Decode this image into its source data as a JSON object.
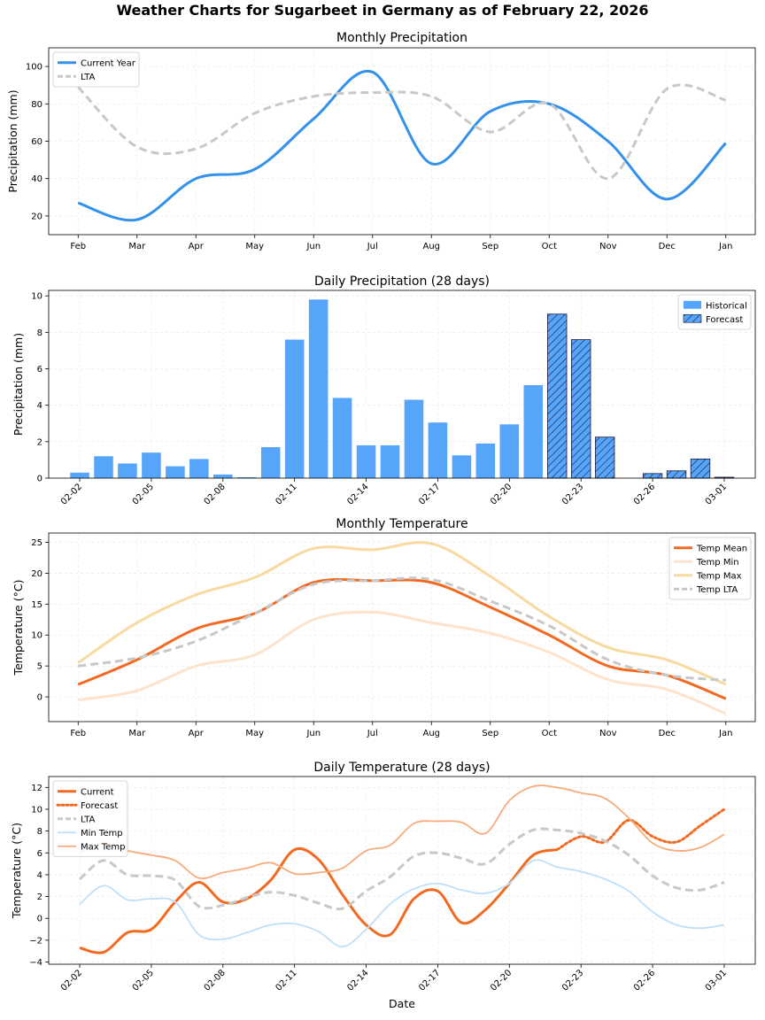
{
  "page": {
    "title": "Weather Charts for Sugarbeet in Germany as of February 22, 2026"
  },
  "chart_data": [
    {
      "id": "monthly-precip",
      "type": "line",
      "title": "Monthly Precipitation",
      "xlabel": "",
      "ylabel": "Precipitation (mm)",
      "categories": [
        "Feb",
        "Mar",
        "Apr",
        "May",
        "Jun",
        "Jul",
        "Aug",
        "Sep",
        "Oct",
        "Nov",
        "Dec",
        "Jan"
      ],
      "ylim": [
        10,
        110
      ],
      "yticks": [
        20,
        40,
        60,
        80,
        100
      ],
      "grid": true,
      "legend": "top-left",
      "series": [
        {
          "name": "Current Year",
          "color": "#3391ea",
          "style": "solid",
          "width": 3,
          "values": [
            27,
            18,
            40,
            45,
            72,
            97,
            48,
            76,
            80,
            60,
            29,
            59
          ]
        },
        {
          "name": "LTA",
          "color": "#c8c8c8",
          "style": "dashed",
          "width": 3,
          "values": [
            89,
            57,
            56,
            75,
            84,
            86,
            84,
            65,
            80,
            40,
            88,
            82
          ]
        }
      ]
    },
    {
      "id": "daily-precip",
      "type": "bar",
      "title": "Daily Precipitation (28 days)",
      "xlabel": "",
      "ylabel": "Precipitation (mm)",
      "categories": [
        "02-02",
        "02-03",
        "02-04",
        "02-05",
        "02-06",
        "02-07",
        "02-08",
        "02-09",
        "02-10",
        "02-11",
        "02-12",
        "02-13",
        "02-14",
        "02-15",
        "02-16",
        "02-17",
        "02-18",
        "02-19",
        "02-20",
        "02-21",
        "02-22",
        "02-23",
        "02-24",
        "02-25",
        "02-26",
        "02-27",
        "02-28",
        "03-01"
      ],
      "xticks": [
        "02-02",
        "02-05",
        "02-08",
        "02-11",
        "02-14",
        "02-17",
        "02-20",
        "02-23",
        "02-26",
        "03-01"
      ],
      "values": [
        0.3,
        1.2,
        0.8,
        1.4,
        0.65,
        1.05,
        0.2,
        0.05,
        1.7,
        7.6,
        9.8,
        4.4,
        1.8,
        1.8,
        4.3,
        3.05,
        1.25,
        1.9,
        2.95,
        5.1,
        9.0,
        7.6,
        2.25,
        0.0,
        0.25,
        0.4,
        1.05,
        0.05
      ],
      "forecast_from": "02-22",
      "ylim": [
        0,
        10.3
      ],
      "yticks": [
        0,
        2,
        4,
        6,
        8,
        10
      ],
      "grid": true,
      "legend": "top-right",
      "series": [
        {
          "name": "Historical",
          "color": "#56a5fa"
        },
        {
          "name": "Forecast",
          "color": "#56a5fa",
          "hatch": true
        }
      ]
    },
    {
      "id": "monthly-temp",
      "type": "line",
      "title": "Monthly Temperature",
      "xlabel": "",
      "ylabel": "Temperature (°C)",
      "categories": [
        "Feb",
        "Mar",
        "Apr",
        "May",
        "Jun",
        "Jul",
        "Aug",
        "Sep",
        "Oct",
        "Nov",
        "Dec",
        "Jan"
      ],
      "ylim": [
        -4,
        26.5
      ],
      "yticks": [
        0,
        5,
        10,
        15,
        20,
        25
      ],
      "grid": true,
      "legend": "top-right",
      "series": [
        {
          "name": "Temp Mean",
          "color": "#f26a21",
          "style": "solid",
          "width": 3,
          "values": [
            2.0,
            6.0,
            11.0,
            13.5,
            18.5,
            18.8,
            18.5,
            14.5,
            10.0,
            5.0,
            3.5,
            -0.3
          ]
        },
        {
          "name": "Temp Min",
          "color": "#fde3cc",
          "style": "solid",
          "width": 3,
          "values": [
            -0.5,
            1.0,
            5.0,
            6.8,
            12.5,
            13.7,
            12.0,
            10.3,
            7.2,
            2.8,
            1.2,
            -2.7
          ]
        },
        {
          "name": "Temp Max",
          "color": "#f8d9a0",
          "style": "solid",
          "width": 3,
          "values": [
            5.5,
            12.0,
            16.5,
            19.3,
            24.0,
            23.8,
            24.8,
            19.5,
            13.0,
            8.0,
            6.0,
            2.0
          ]
        },
        {
          "name": "Temp LTA",
          "color": "#c8c8c8",
          "style": "dashed",
          "width": 3,
          "values": [
            5.0,
            6.3,
            9.0,
            13.5,
            18.2,
            18.8,
            19.0,
            15.5,
            11.5,
            6.0,
            3.5,
            2.7
          ]
        }
      ]
    },
    {
      "id": "daily-temp",
      "type": "line",
      "title": "Daily Temperature (28 days)",
      "xlabel": "Date",
      "ylabel": "Temperature (°C)",
      "categories": [
        "02-02",
        "02-03",
        "02-04",
        "02-05",
        "02-06",
        "02-07",
        "02-08",
        "02-09",
        "02-10",
        "02-11",
        "02-12",
        "02-13",
        "02-14",
        "02-15",
        "02-16",
        "02-17",
        "02-18",
        "02-19",
        "02-20",
        "02-21",
        "02-22",
        "02-23",
        "02-24",
        "02-25",
        "02-26",
        "02-27",
        "02-28",
        "03-01"
      ],
      "xticks": [
        "02-02",
        "02-05",
        "02-08",
        "02-11",
        "02-14",
        "02-17",
        "02-20",
        "02-23",
        "02-26",
        "03-01"
      ],
      "ylim": [
        -4.2,
        13.0
      ],
      "yticks": [
        -4,
        -2,
        0,
        2,
        4,
        6,
        8,
        10,
        12
      ],
      "grid": true,
      "legend": "top-left",
      "series": [
        {
          "name": "Current",
          "color": "#f26a21",
          "style": "solid",
          "width": 3,
          "values": [
            -2.7,
            -3.1,
            -1.3,
            -1.0,
            1.5,
            3.3,
            1.5,
            1.8,
            3.5,
            6.3,
            5.4,
            2.2,
            -0.6,
            -1.5,
            1.8,
            2.5,
            -0.4,
            0.8,
            3.2,
            5.8,
            6.3,
            null,
            null,
            null,
            null,
            null,
            null,
            null
          ]
        },
        {
          "name": "Forecast",
          "color": "#f26a21",
          "style": "dotted",
          "width": 3,
          "values": [
            null,
            null,
            null,
            null,
            null,
            null,
            null,
            null,
            null,
            null,
            null,
            null,
            null,
            null,
            null,
            null,
            null,
            null,
            null,
            null,
            6.3,
            7.5,
            7.0,
            9.0,
            7.5,
            7.0,
            8.5,
            10.0
          ]
        },
        {
          "name": "LTA",
          "color": "#c8c8c8",
          "style": "dashed",
          "width": 3,
          "values": [
            3.6,
            5.3,
            4.0,
            3.9,
            3.5,
            1.1,
            1.2,
            1.9,
            2.4,
            2.1,
            1.4,
            0.9,
            2.5,
            3.8,
            5.7,
            6.0,
            5.5,
            5.0,
            6.8,
            8.1,
            8.1,
            7.8,
            7.1,
            5.8,
            3.9,
            2.8,
            2.6,
            3.3
          ]
        },
        {
          "name": "Min Temp",
          "color": "#bfe0f7",
          "style": "solid",
          "width": 1.8,
          "values": [
            1.3,
            3.0,
            1.7,
            1.8,
            1.5,
            -1.5,
            -1.9,
            -1.3,
            -0.6,
            -0.5,
            -1.2,
            -2.6,
            -1.0,
            1.3,
            2.7,
            3.2,
            2.6,
            2.3,
            3.2,
            5.3,
            4.7,
            4.3,
            3.6,
            2.5,
            0.6,
            -0.6,
            -0.9,
            -0.6
          ]
        },
        {
          "name": "Max Temp",
          "color": "#f8ab7a",
          "style": "solid",
          "width": 1.8,
          "values": [
            6.0,
            6.9,
            6.2,
            5.8,
            5.3,
            3.7,
            4.2,
            4.6,
            5.1,
            4.1,
            4.2,
            4.6,
            6.2,
            6.7,
            8.7,
            8.9,
            8.8,
            7.8,
            10.8,
            12.1,
            12.0,
            11.5,
            11.0,
            9.2,
            6.9,
            6.2,
            6.5,
            7.7
          ]
        }
      ]
    }
  ]
}
